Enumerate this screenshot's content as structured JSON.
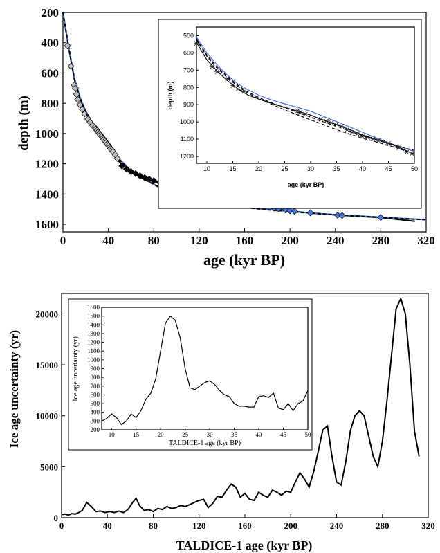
{
  "chart_data": [
    {
      "type": "line",
      "panel": "top-main",
      "xlabel": "age (kyr BP)",
      "ylabel": "depth (m)",
      "xlim": [
        0,
        320
      ],
      "ylim": [
        1650,
        200
      ],
      "y_inverted": true,
      "xticks": [
        "0",
        "40",
        "80",
        "120",
        "160",
        "200",
        "240",
        "280",
        "320"
      ],
      "yticks": [
        "200",
        "400",
        "600",
        "800",
        "1000",
        "1200",
        "1400",
        "1600"
      ],
      "series": [
        {
          "style": "black-solid",
          "color": "#000000",
          "x": [
            0,
            5,
            10,
            15,
            20,
            25,
            30,
            35,
            40,
            45,
            50,
            60,
            70,
            80,
            90,
            100,
            110,
            120,
            130,
            140,
            150,
            160,
            180,
            200,
            220,
            240,
            260,
            280,
            300,
            310
          ],
          "y": [
            200,
            430,
            640,
            770,
            860,
            925,
            975,
            1020,
            1075,
            1135,
            1190,
            1255,
            1292,
            1315,
            1335,
            1355,
            1372,
            1387,
            1402,
            1420,
            1440,
            1460,
            1490,
            1512,
            1527,
            1538,
            1547,
            1556,
            1572,
            1580
          ]
        },
        {
          "style": "blue-solid",
          "color": "#3f6fe0",
          "x": [
            0,
            5,
            10,
            15,
            20,
            25,
            30,
            35,
            40,
            45,
            50,
            60,
            70,
            80,
            90,
            100,
            110,
            120,
            140,
            160,
            180,
            200,
            220,
            240,
            260,
            280,
            300,
            320
          ],
          "y": [
            200,
            425,
            630,
            760,
            850,
            915,
            965,
            1010,
            1060,
            1115,
            1170,
            1245,
            1295,
            1335,
            1372,
            1402,
            1428,
            1445,
            1468,
            1487,
            1502,
            1515,
            1526,
            1536,
            1545,
            1553,
            1562,
            1570
          ]
        },
        {
          "style": "black-dashed",
          "color": "#000000",
          "x": [
            0,
            5,
            10,
            15,
            20,
            25,
            30,
            35,
            40,
            45,
            50,
            60,
            70,
            80,
            90,
            100,
            110,
            120,
            140,
            160,
            180,
            200,
            220,
            240,
            260,
            280,
            300,
            320
          ],
          "y": [
            200,
            428,
            636,
            766,
            856,
            920,
            970,
            1015,
            1065,
            1120,
            1175,
            1248,
            1297,
            1337,
            1374,
            1404,
            1430,
            1447,
            1470,
            1489,
            1504,
            1516,
            1527,
            1537,
            1546,
            1554,
            1563,
            1570
          ]
        }
      ],
      "markers": {
        "gray_diamonds": {
          "color": "#bbbbbb",
          "x": [
            4,
            7,
            10,
            11,
            12,
            13,
            15,
            17,
            19,
            22,
            24,
            26,
            28,
            29,
            30,
            31,
            32,
            33,
            34,
            35,
            36,
            37,
            38,
            39,
            40,
            41,
            42,
            43,
            44,
            46,
            48
          ],
          "y": [
            420,
            555,
            680,
            700,
            740,
            775,
            810,
            840,
            870,
            905,
            925,
            945,
            960,
            970,
            980,
            990,
            1000,
            1010,
            1020,
            1030,
            1040,
            1050,
            1060,
            1070,
            1080,
            1090,
            1100,
            1110,
            1120,
            1140,
            1165
          ]
        },
        "black_diamonds": {
          "color": "#000000",
          "x": [
            52,
            56,
            60,
            64,
            68,
            72,
            76,
            80,
            85,
            90,
            95,
            100,
            106,
            112,
            118,
            124,
            130,
            138
          ],
          "y": [
            1215,
            1235,
            1252,
            1265,
            1280,
            1292,
            1302,
            1312,
            1322,
            1332,
            1342,
            1352,
            1362,
            1372,
            1382,
            1392,
            1405,
            1420
          ]
        },
        "blue_diamonds": {
          "color": "#4a7be0",
          "x": [
            155,
            162,
            168,
            172,
            176,
            186,
            190,
            196,
            200,
            204,
            218,
            242,
            246,
            280
          ],
          "y": [
            1445,
            1460,
            1470,
            1478,
            1484,
            1492,
            1498,
            1505,
            1510,
            1514,
            1524,
            1540,
            1542,
            1555
          ]
        }
      }
    },
    {
      "type": "line",
      "panel": "top-inset",
      "xlabel": "age (kyr BP)",
      "ylabel": "depth (m)",
      "xlim": [
        8,
        50
      ],
      "ylim": [
        1240,
        450
      ],
      "y_inverted": true,
      "xticks": [
        "10",
        "15",
        "20",
        "25",
        "30",
        "35",
        "40",
        "45",
        "50"
      ],
      "yticks": [
        "500",
        "600",
        "700",
        "800",
        "900",
        "1000",
        "1100",
        "1200"
      ],
      "series": [
        {
          "style": "black-solid",
          "color": "#000000",
          "x": [
            8,
            10,
            12,
            14,
            16,
            18,
            20,
            22,
            25,
            28,
            30,
            32,
            35,
            38,
            40,
            42,
            44,
            46,
            48,
            50
          ],
          "y": [
            540,
            640,
            705,
            762,
            808,
            845,
            868,
            888,
            915,
            942,
            960,
            985,
            1015,
            1050,
            1075,
            1095,
            1115,
            1135,
            1160,
            1190
          ]
        },
        {
          "style": "blue-solid",
          "color": "#3f6fe0",
          "x": [
            8,
            10,
            12,
            14,
            16,
            18,
            20,
            22,
            25,
            28,
            30,
            32,
            35,
            38,
            40,
            42,
            44,
            46,
            48,
            50
          ],
          "y": [
            508,
            600,
            670,
            730,
            780,
            815,
            845,
            868,
            895,
            920,
            938,
            962,
            998,
            1035,
            1060,
            1085,
            1110,
            1130,
            1150,
            1172
          ]
        },
        {
          "style": "black-dashed",
          "color": "#000000",
          "x": [
            8,
            10,
            12,
            14,
            16,
            18,
            20,
            22,
            25,
            28,
            30,
            32,
            35,
            38,
            40,
            42,
            44,
            46,
            48,
            50
          ],
          "y": [
            525,
            620,
            690,
            745,
            795,
            835,
            865,
            892,
            930,
            965,
            988,
            1010,
            1045,
            1075,
            1095,
            1110,
            1128,
            1145,
            1165,
            1185
          ]
        },
        {
          "style": "black-dashed",
          "color": "#000000",
          "x": [
            8,
            10,
            12,
            14,
            16,
            18,
            20,
            22,
            25,
            28,
            30,
            32,
            35,
            38,
            40,
            42,
            44,
            46,
            48,
            50
          ],
          "y": [
            518,
            612,
            682,
            738,
            788,
            828,
            858,
            884,
            918,
            950,
            972,
            995,
            1025,
            1058,
            1080,
            1098,
            1115,
            1132,
            1150,
            1165
          ]
        }
      ],
      "markers": {
        "x_points": [
          8,
          11,
          12,
          14,
          15,
          16,
          17,
          27.5,
          28,
          29,
          32,
          33,
          34,
          35,
          36,
          37,
          38,
          39,
          40,
          41,
          42,
          43,
          44,
          45,
          47,
          48.5,
          49.5
        ],
        "y_points": [
          545,
          680,
          710,
          750,
          790,
          810,
          825,
          935,
          945,
          955,
          985,
          995,
          1005,
          1015,
          1025,
          1045,
          1060,
          1070,
          1085,
          1090,
          1098,
          1108,
          1115,
          1125,
          1150,
          1175,
          1185
        ]
      }
    },
    {
      "type": "line",
      "panel": "bottom-main",
      "xlabel": "TALDICE-1 age (kyr BP)",
      "ylabel": "Ice age uncertainty (yr)",
      "xlim": [
        0,
        320
      ],
      "ylim": [
        0,
        22000
      ],
      "xticks": [
        "0",
        "40",
        "80",
        "120",
        "160",
        "200",
        "240",
        "280",
        "320"
      ],
      "yticks": [
        "0",
        "5000",
        "10000",
        "15000",
        "20000"
      ],
      "series": [
        {
          "style": "black-solid",
          "color": "#000000",
          "x": [
            0,
            3,
            6,
            9,
            12,
            15,
            18,
            22,
            26,
            30,
            34,
            38,
            42,
            46,
            50,
            54,
            58,
            62,
            65,
            68,
            72,
            76,
            80,
            84,
            88,
            92,
            96,
            100,
            104,
            108,
            112,
            116,
            120,
            124,
            128,
            132,
            136,
            140,
            144,
            148,
            152,
            156,
            160,
            164,
            168,
            172,
            176,
            180,
            184,
            188,
            192,
            196,
            200,
            204,
            208,
            212,
            216,
            220,
            224,
            228,
            232,
            236,
            240,
            244,
            248,
            252,
            256,
            260,
            264,
            268,
            272,
            276,
            280,
            284,
            288,
            292,
            296,
            300,
            304,
            308,
            312
          ],
          "y": [
            300,
            350,
            250,
            400,
            350,
            500,
            700,
            1500,
            1100,
            600,
            650,
            500,
            600,
            500,
            650,
            500,
            800,
            1500,
            1900,
            1200,
            700,
            800,
            600,
            900,
            800,
            1100,
            900,
            1000,
            1200,
            1100,
            1300,
            1500,
            1700,
            1800,
            1000,
            1400,
            2100,
            2000,
            2700,
            3300,
            3000,
            2000,
            2400,
            1800,
            1700,
            2500,
            2200,
            2000,
            2700,
            2500,
            2200,
            2600,
            2500,
            3500,
            4400,
            3800,
            3000,
            4500,
            6500,
            8600,
            9000,
            6000,
            3500,
            3200,
            5500,
            8500,
            10000,
            10500,
            10000,
            8000,
            6000,
            5000,
            7500,
            11500,
            16000,
            20500,
            21500,
            20000,
            15000,
            8500,
            6000
          ]
        }
      ]
    },
    {
      "type": "line",
      "panel": "bottom-inset",
      "xlabel": "TALDICE-1 age (kyr BP)",
      "ylabel": "Ice age uncertainty (yr)",
      "xlim": [
        8,
        50
      ],
      "ylim": [
        200,
        1600
      ],
      "xticks": [
        "10",
        "15",
        "20",
        "25",
        "30",
        "35",
        "40",
        "45",
        "50"
      ],
      "yticks": [
        "200",
        "300",
        "400",
        "500",
        "600",
        "700",
        "800",
        "900",
        "1000",
        "1100",
        "1200",
        "1300",
        "1400",
        "1500",
        "1600"
      ],
      "series": [
        {
          "style": "black-solid",
          "color": "#000000",
          "x": [
            8,
            9,
            10,
            11,
            12,
            13,
            14,
            15,
            16,
            17,
            18,
            19,
            20,
            21,
            22,
            23,
            24,
            25,
            26,
            27,
            28,
            29,
            30,
            31,
            32,
            33,
            34,
            35,
            36,
            37,
            38,
            39,
            40,
            41,
            42,
            43,
            44,
            45,
            46,
            47,
            48,
            49,
            50
          ],
          "y": [
            300,
            330,
            380,
            340,
            260,
            300,
            380,
            340,
            420,
            550,
            620,
            780,
            1100,
            1420,
            1500,
            1450,
            1250,
            900,
            680,
            660,
            700,
            740,
            760,
            720,
            650,
            600,
            580,
            500,
            470,
            470,
            460,
            460,
            580,
            590,
            570,
            620,
            450,
            430,
            500,
            420,
            500,
            530,
            650
          ]
        }
      ]
    }
  ]
}
